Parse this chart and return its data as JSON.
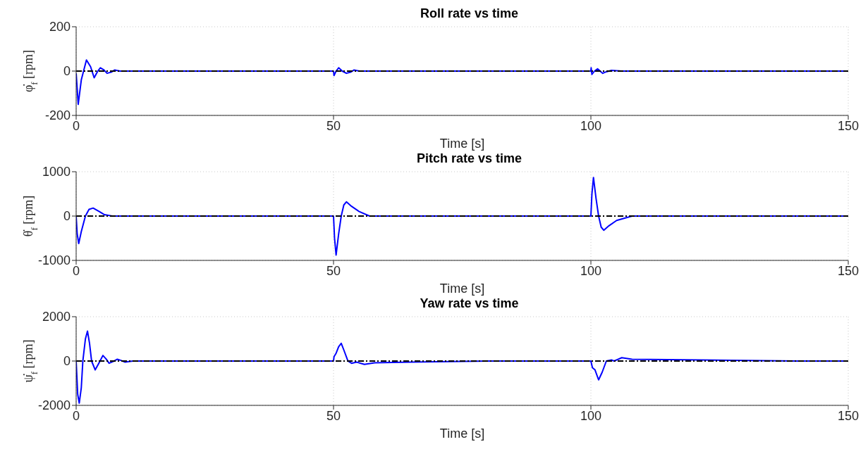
{
  "chart_data": [
    {
      "type": "line",
      "title": "Roll rate vs time",
      "xlabel": "Time [s]",
      "ylabel": "φ̇$_{f}$ [rpm]",
      "xlim": [
        0,
        150
      ],
      "xticks": [
        0,
        50,
        100,
        150
      ],
      "ylim": [
        -200,
        200
      ],
      "yticks": [
        -200,
        0,
        200
      ],
      "grid": true,
      "series": [
        {
          "color": "#0000ff",
          "x": [
            0,
            0.4,
            1,
            2,
            2.8,
            3.5,
            4.2,
            4.7,
            5.4,
            6,
            6.8,
            7.5,
            8.5,
            10,
            30,
            50,
            50.1,
            50.5,
            51,
            51.7,
            52.5,
            53.3,
            54,
            55,
            57,
            80,
            100,
            100.05,
            100.2,
            100.7,
            101.3,
            101.8,
            102.3,
            103,
            104,
            106,
            130,
            150
          ],
          "values": [
            -10,
            -150,
            -40,
            50,
            20,
            -30,
            0,
            15,
            5,
            -10,
            -5,
            5,
            0,
            0,
            0,
            0,
            -20,
            0,
            15,
            0,
            -10,
            -5,
            5,
            0,
            0,
            0,
            0,
            15,
            -15,
            0,
            10,
            0,
            -10,
            -3,
            3,
            0,
            0,
            0
          ]
        }
      ],
      "ref_lines": [
        {
          "axis": "y",
          "value": 0,
          "color": "#000000",
          "line_style": "dashed"
        }
      ]
    },
    {
      "type": "line",
      "title": "Pitch rate vs time",
      "xlabel": "Time [s]",
      "ylabel": "θ̇$_{f}$ [rpm]",
      "xlim": [
        0,
        150
      ],
      "xticks": [
        0,
        50,
        100,
        150
      ],
      "ylim": [
        -1000,
        1000
      ],
      "yticks": [
        -1000,
        0,
        1000
      ],
      "grid": true,
      "series": [
        {
          "color": "#0000ff",
          "x": [
            0,
            0.2,
            0.5,
            1,
            1.8,
            2.5,
            3.3,
            4.5,
            5.5,
            7,
            30,
            50,
            50.2,
            50.5,
            51,
            51.5,
            52,
            52.5,
            53.5,
            55,
            57,
            80,
            100,
            100.2,
            100.5,
            101,
            101.5,
            102,
            102.5,
            103.5,
            105,
            108,
            130,
            150
          ],
          "values": [
            0,
            -400,
            -620,
            -350,
            0,
            150,
            180,
            100,
            30,
            0,
            0,
            0,
            -500,
            -880,
            -400,
            0,
            250,
            320,
            220,
            100,
            0,
            0,
            0,
            500,
            870,
            400,
            0,
            -250,
            -320,
            -220,
            -100,
            0,
            0,
            0
          ]
        }
      ],
      "ref_lines": [
        {
          "axis": "y",
          "value": 0,
          "color": "#000000",
          "line_style": "dashed"
        }
      ]
    },
    {
      "type": "line",
      "title": "Yaw rate vs time",
      "xlabel": "Time [s]",
      "ylabel": "ψ̇$_{f}$ [rpm]",
      "xlim": [
        0,
        150
      ],
      "xticks": [
        0,
        50,
        100,
        150
      ],
      "ylim": [
        -2000,
        2000
      ],
      "yticks": [
        -2000,
        0,
        2000
      ],
      "grid": true,
      "series": [
        {
          "color": "#0000ff",
          "x": [
            0,
            0.3,
            0.6,
            1,
            1.3,
            1.8,
            2.2,
            2.6,
            3,
            3.7,
            4.4,
            5.2,
            5.8,
            6.4,
            7.2,
            8,
            8.8,
            9.5,
            11,
            30,
            50,
            50.1,
            50.5,
            51,
            51.5,
            52,
            52.8,
            53.5,
            54.5,
            56,
            58,
            65,
            80,
            100,
            100.3,
            100.8,
            101.5,
            102.2,
            103,
            104,
            104.5,
            106,
            108,
            115,
            140,
            150
          ],
          "values": [
            0,
            -1500,
            -1900,
            -1200,
            0,
            1000,
            1350,
            800,
            0,
            -400,
            -100,
            250,
            100,
            -100,
            -20,
            80,
            20,
            -50,
            0,
            0,
            0,
            200,
            350,
            650,
            800,
            500,
            0,
            -100,
            -50,
            -150,
            -80,
            -50,
            0,
            0,
            -300,
            -400,
            -850,
            -500,
            0,
            50,
            0,
            150,
            80,
            60,
            0,
            0
          ]
        }
      ],
      "ref_lines": [
        {
          "axis": "y",
          "value": 0,
          "color": "#000000",
          "line_style": "dashed"
        }
      ]
    }
  ]
}
